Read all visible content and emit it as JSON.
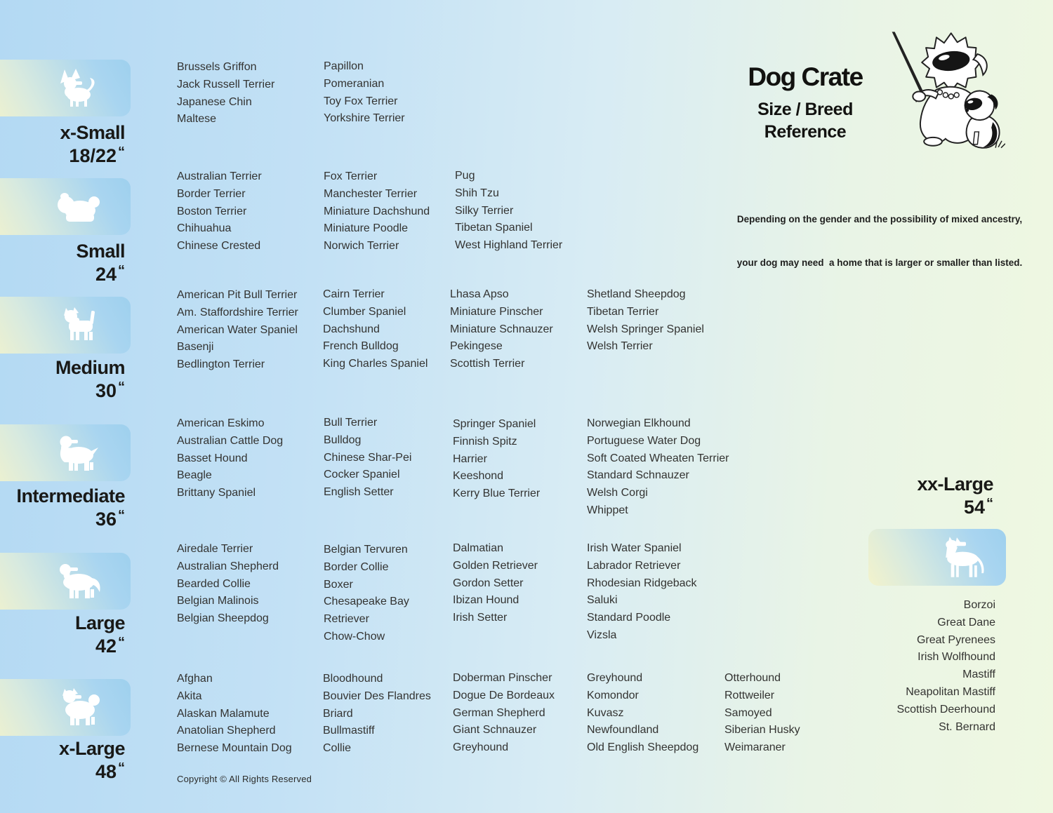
{
  "header": {
    "title": "Dog Crate",
    "subtitle_line1": "Size / Breed",
    "subtitle_line2": "Reference",
    "note_line1": "Depending on the gender and the possibility of mixed ancestry,",
    "note_line2": "your dog may need  a home that is larger or smaller than listed."
  },
  "footer": {
    "copyright": "Copyright © All Rights Reserved"
  },
  "colors": {
    "bg_left_blue": "#b3d9f3",
    "bg_right_green": "#eff8e1",
    "card_yellow": "#f1f2cd",
    "card_blue": "#9ed0ee",
    "silhouette_white": "#ffffff",
    "heading_text": "#191917",
    "breed_text": "#333331"
  },
  "sizes": [
    {
      "label": "x-Small",
      "inches": "18/22",
      "unit": "“",
      "icon": "papillon-silhouette"
    },
    {
      "label": "Small",
      "inches": "24",
      "unit": "“",
      "icon": "shih-tzu-silhouette"
    },
    {
      "label": "Medium",
      "inches": "30",
      "unit": "“",
      "icon": "westie-silhouette"
    },
    {
      "label": "Intermediate",
      "inches": "36",
      "unit": "“",
      "icon": "spaniel-silhouette"
    },
    {
      "label": "Large",
      "inches": "42",
      "unit": "“",
      "icon": "retriever-silhouette"
    },
    {
      "label": "x-Large",
      "inches": "48",
      "unit": "“",
      "icon": "akita-silhouette"
    },
    {
      "label": "xx-Large",
      "inches": "54",
      "unit": "“",
      "icon": "great-dane-silhouette"
    }
  ],
  "breeds": {
    "x_small": {
      "col1": [
        "Brussels Griffon",
        "Jack Russell Terrier",
        "Japanese Chin",
        "Maltese"
      ],
      "col2": [
        "Papillon",
        "Pomeranian",
        "Toy Fox Terrier",
        "Yorkshire Terrier"
      ]
    },
    "small": {
      "col1": [
        "Australian Terrier",
        "Border Terrier",
        "Boston Terrier",
        "Chihuahua",
        "Chinese Crested"
      ],
      "col2": [
        "Fox Terrier",
        "Manchester Terrier",
        "Miniature Dachshund",
        "Miniature Poodle",
        "Norwich Terrier"
      ],
      "col3": [
        "Pug",
        "Shih Tzu",
        "Silky Terrier",
        "Tibetan Spaniel",
        "West Highland Terrier"
      ]
    },
    "medium": {
      "col1": [
        "American Pit Bull Terrier",
        "Am. Staffordshire Terrier",
        "American Water Spaniel",
        "Basenji",
        "Bedlington Terrier"
      ],
      "col2": [
        "Cairn Terrier",
        "Clumber Spaniel",
        "Dachshund",
        "French Bulldog",
        "King Charles Spaniel"
      ],
      "col3": [
        "Lhasa Apso",
        "Miniature Pinscher",
        "Miniature Schnauzer",
        "Pekingese",
        "Scottish Terrier"
      ],
      "col4": [
        "Shetland Sheepdog",
        "Tibetan Terrier",
        "Welsh Springer Spaniel",
        "Welsh Terrier"
      ]
    },
    "intermediate": {
      "col1": [
        "American Eskimo",
        "Australian Cattle Dog",
        "Basset Hound",
        "Beagle",
        "Brittany Spaniel"
      ],
      "col2": [
        "Bull Terrier",
        "Bulldog",
        "Chinese Shar-Pei",
        "Cocker Spaniel",
        "English Setter"
      ],
      "col3": [
        "Springer Spaniel",
        "Finnish Spitz",
        "Harrier",
        "Keeshond",
        "Kerry Blue Terrier"
      ],
      "col4": [
        "Norwegian Elkhound",
        "Portuguese Water Dog",
        "Soft Coated Wheaten Terrier",
        "Standard Schnauzer",
        "Welsh Corgi",
        "Whippet"
      ]
    },
    "large": {
      "col1": [
        "Airedale Terrier",
        "Australian Shepherd",
        "Bearded Collie",
        "Belgian Malinois",
        "Belgian Sheepdog"
      ],
      "col2": [
        "Belgian Tervuren",
        "Border Collie",
        "Boxer",
        "Chesapeake Bay Retriever",
        "Chow-Chow"
      ],
      "col3": [
        "Dalmatian",
        "Golden Retriever",
        "Gordon Setter",
        "Ibizan Hound",
        "Irish Setter"
      ],
      "col4": [
        "Irish Water Spaniel",
        "Labrador Retriever",
        "Rhodesian Ridgeback",
        "Saluki",
        "Standard Poodle",
        "Vizsla"
      ]
    },
    "x_large": {
      "col1": [
        "Afghan",
        "Akita",
        "Alaskan Malamute",
        "Anatolian Shepherd",
        "Bernese Mountain Dog"
      ],
      "col2": [
        "Bloodhound",
        "Bouvier Des Flandres",
        "Briard",
        "Bullmastiff",
        "Collie"
      ],
      "col3": [
        "Doberman Pinscher",
        "Dogue De Bordeaux",
        "German Shepherd",
        "Giant Schnauzer",
        "Greyhound"
      ],
      "col4": [
        "Greyhound",
        "Komondor",
        "Kuvasz",
        "Newfoundland",
        "Old English Sheepdog"
      ],
      "col5": [
        "Otterhound",
        "Rottweiler",
        "Samoyed",
        "Siberian Husky",
        "Weimaraner"
      ]
    },
    "xx_large": {
      "col1": [
        "Borzoi",
        "Great Dane",
        "Great Pyrenees",
        "Irish Wolfhound",
        "Mastiff",
        "Neapolitan Mastiff",
        "Scottish Deerhound",
        "St. Bernard"
      ]
    }
  }
}
